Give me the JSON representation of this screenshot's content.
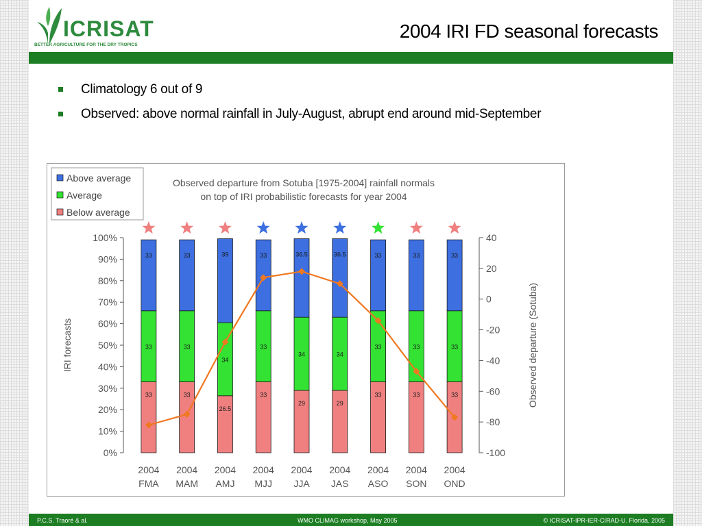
{
  "slide": {
    "title": "2004 IRI FD seasonal forecasts",
    "logo_text": "ICRISAT",
    "logo_tagline": "BETTER AGRICULTURE FOR THE DRY TROPICS",
    "bullets": [
      "Climatology 6 out of 9",
      "Observed: above normal rainfall in July-August, abrupt end around mid-September"
    ]
  },
  "footer": {
    "left": "P.C.S. Traoré & al.",
    "center": "WMO CLIMAG workshop, May 2005",
    "right": "© ICRISAT-IPR-IER-CIRAD-U. Florida, 2005"
  },
  "colors": {
    "above": "#3d6fe0",
    "average": "#33e233",
    "below": "#f08080",
    "line": "#f07820",
    "star_above": "#3d6fe0",
    "star_normal": "#33e233",
    "star_below": "#f08080",
    "brand_green": "#1c7d22"
  },
  "chart_data": {
    "type": "bar",
    "stacked": true,
    "title": "Observed departure from Sotuba [1975-2004] rainfall normals",
    "subtitle": "on top of IRI probabilistic forecasts for year 2004",
    "ylabel": "IRI forecasts",
    "y2label": "Observed departure (Sotuba)",
    "ylim": [
      0,
      100
    ],
    "y2lim": [
      -100,
      40
    ],
    "y_ticks": [
      "0%",
      "10%",
      "20%",
      "30%",
      "40%",
      "50%",
      "60%",
      "70%",
      "80%",
      "90%",
      "100%"
    ],
    "y2_ticks": [
      "-100",
      "-80",
      "-60",
      "-40",
      "-20",
      "0",
      "20",
      "40"
    ],
    "categories": [
      [
        "2004",
        "FMA"
      ],
      [
        "2004",
        "MAM"
      ],
      [
        "2004",
        "AMJ"
      ],
      [
        "2004",
        "MJJ"
      ],
      [
        "2004",
        "JJA"
      ],
      [
        "2004",
        "JAS"
      ],
      [
        "2004",
        "ASO"
      ],
      [
        "2004",
        "SON"
      ],
      [
        "2004",
        "OND"
      ]
    ],
    "series": [
      {
        "name": "Below average",
        "key": "below",
        "values": [
          33,
          33,
          26.5,
          33,
          29,
          29,
          33,
          33,
          33
        ],
        "labels": [
          "33",
          "33",
          "26.5",
          "33",
          "29",
          "29",
          "33",
          "33",
          "33"
        ]
      },
      {
        "name": "Average",
        "key": "average",
        "values": [
          33,
          33,
          34,
          33,
          34,
          34,
          33,
          33,
          33
        ],
        "labels": [
          "33",
          "33",
          "34",
          "33",
          "34",
          "34",
          "33",
          "33",
          "33"
        ]
      },
      {
        "name": "Above average",
        "key": "above",
        "values": [
          33,
          33,
          39,
          33,
          36.5,
          36.5,
          33,
          33,
          33
        ],
        "labels": [
          "33",
          "33",
          "39",
          "33",
          "36.5",
          "36.5",
          "33",
          "33",
          "33"
        ]
      }
    ],
    "legend": {
      "position": "top-left",
      "order": [
        "Above average",
        "Average",
        "Below average"
      ]
    },
    "stars": [
      "below",
      "below",
      "below",
      "above",
      "above",
      "above",
      "normal",
      "below",
      "below"
    ],
    "observed_departure": [
      -82,
      -75,
      -28,
      14,
      18,
      10,
      -14,
      -47,
      -77
    ]
  }
}
